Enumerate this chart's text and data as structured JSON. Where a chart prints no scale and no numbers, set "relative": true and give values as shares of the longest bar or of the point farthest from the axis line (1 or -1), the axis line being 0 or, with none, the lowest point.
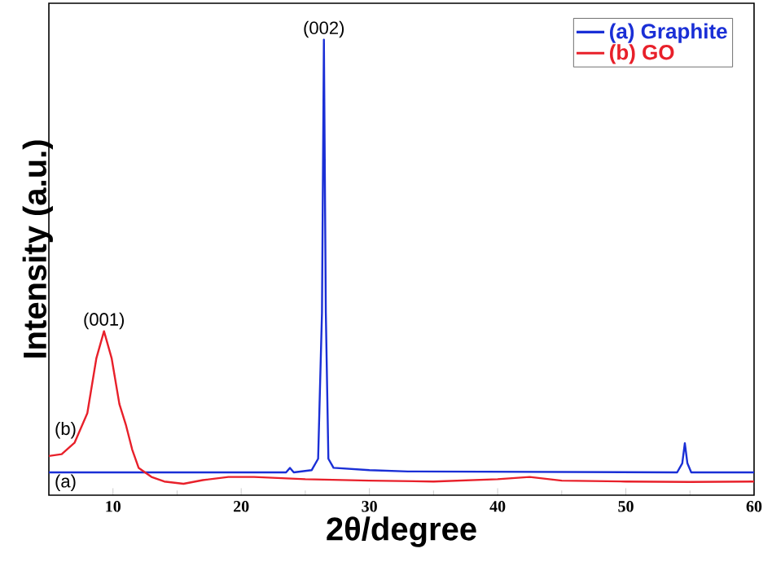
{
  "chart_data": {
    "type": "line",
    "relative": true,
    "xlabel": "2θ/degree",
    "ylabel": "Intensity (a.u.)",
    "xlim": [
      5,
      60
    ],
    "xticks": [
      10,
      20,
      30,
      40,
      50,
      60
    ],
    "legend": "top right",
    "line_style": "solid",
    "marker": "none",
    "grid": false,
    "tick_labels": "x",
    "annotations": [
      {
        "text": "(002)",
        "x": 26.45,
        "y": 1.0
      },
      {
        "text": "(001)",
        "x": 9.3,
        "y": 0.36
      },
      {
        "text": "(b)",
        "x": 6.3,
        "y": 0.12
      },
      {
        "text": "(a)",
        "x": 6.3,
        "y": 0.05
      }
    ],
    "series": [
      {
        "name": "(a) Graphite",
        "color": "#1a2fd6",
        "x": [
          5,
          23.5,
          23.8,
          24.1,
          25.5,
          26.0,
          26.3,
          26.45,
          26.6,
          26.8,
          27.2,
          30,
          33,
          54,
          54.4,
          54.6,
          54.8,
          55.1,
          60
        ],
        "values": [
          0.05,
          0.05,
          0.06,
          0.05,
          0.055,
          0.08,
          0.4,
          1.0,
          0.4,
          0.08,
          0.06,
          0.055,
          0.052,
          0.05,
          0.07,
          0.114,
          0.07,
          0.05,
          0.05
        ]
      },
      {
        "name": "(b) GO",
        "color": "#e8202a",
        "x": [
          5,
          6,
          7,
          8,
          8.7,
          9.3,
          9.9,
          10.5,
          11,
          11.5,
          12,
          13,
          14,
          15.5,
          17,
          19,
          21,
          25,
          30,
          35,
          40,
          42.5,
          45,
          50,
          55,
          60
        ],
        "values": [
          0.086,
          0.09,
          0.115,
          0.18,
          0.3,
          0.36,
          0.3,
          0.2,
          0.155,
          0.1,
          0.06,
          0.04,
          0.03,
          0.025,
          0.033,
          0.04,
          0.04,
          0.035,
          0.032,
          0.03,
          0.035,
          0.04,
          0.032,
          0.03,
          0.029,
          0.03
        ]
      }
    ]
  }
}
